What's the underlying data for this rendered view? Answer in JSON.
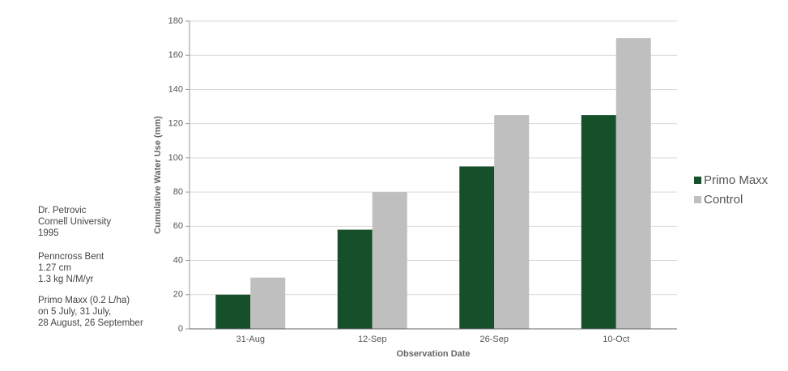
{
  "chart_data": {
    "type": "bar",
    "x_label": "Observation Date",
    "y_label": "Cumulative Water Use (mm)",
    "categories": [
      "31-Aug",
      "12-Sep",
      "26-Sep",
      "10-Oct"
    ],
    "series": [
      {
        "name": "Primo Maxx",
        "color": "#16502a",
        "values": [
          20,
          58,
          95,
          125
        ]
      },
      {
        "name": "Control",
        "color": "#bfbfbf",
        "values": [
          30,
          80,
          125,
          170
        ]
      }
    ],
    "ylim": [
      0,
      180
    ],
    "yticks": [
      0,
      20,
      40,
      60,
      80,
      100,
      120,
      140,
      160,
      180
    ],
    "grid": true,
    "legend": "right",
    "annotations": [
      [
        "Dr. Petrovic",
        "Cornell University",
        "1995"
      ],
      [
        "Penncross Bent",
        "1.27 cm",
        "1.3 kg N/M/yr"
      ],
      [
        "Primo Maxx (0.2 L/ha)",
        "on 5 July, 31 July,",
        "28 August, 26 September"
      ]
    ]
  }
}
